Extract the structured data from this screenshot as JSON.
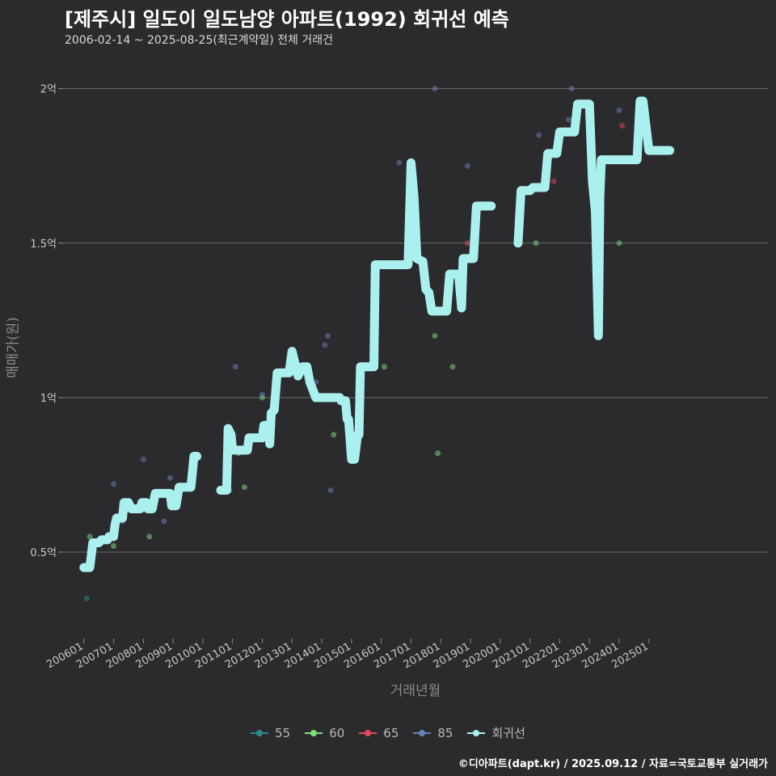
{
  "title": "[제주시] 일도이 일도남양 아파트(1992) 회귀선 예측",
  "subtitle": "2006-02-14 ~ 2025-08-25(최근계약일) 전체 거래건",
  "credit": "©디아파트(dapt.kr) / 2025.09.12 / 자료=국토교통부 실거래가",
  "chart_data": {
    "type": "line",
    "xlabel": "거래년월",
    "ylabel": "매매가(원)",
    "x_ticks": [
      "200601",
      "200701",
      "200801",
      "200901",
      "201001",
      "201101",
      "201201",
      "201301",
      "201401",
      "201501",
      "201601",
      "201701",
      "201801",
      "201901",
      "202001",
      "202101",
      "202201",
      "202301",
      "202401",
      "202501"
    ],
    "y_ticks": [
      {
        "value": 0.5,
        "label": "0.5억"
      },
      {
        "value": 1.0,
        "label": "1억"
      },
      {
        "value": 1.5,
        "label": "1.5억"
      },
      {
        "value": 2.0,
        "label": "2억"
      }
    ],
    "xlim": [
      2005.3,
      2029.0
    ],
    "ylim": [
      0.22,
      2.13
    ],
    "grid": true,
    "legend_position": "bottom",
    "colors": {
      "55": "#2a8a8a",
      "60": "#7ee07e",
      "65": "#e04a5a",
      "85": "#6a82b8",
      "회귀선": "#aaf0ee"
    },
    "legend": [
      "55",
      "60",
      "65",
      "85",
      "회귀선"
    ],
    "scatter": [
      {
        "name": "55",
        "points": [
          [
            2006.1,
            0.35
          ]
        ]
      },
      {
        "name": "60",
        "points": [
          [
            2006.2,
            0.55
          ],
          [
            2007.0,
            0.52
          ],
          [
            2008.2,
            0.55
          ],
          [
            2011.2,
            0.82
          ],
          [
            2011.4,
            0.71
          ],
          [
            2012.0,
            1.0
          ],
          [
            2014.4,
            0.88
          ],
          [
            2016.1,
            1.1
          ],
          [
            2017.8,
            1.2
          ],
          [
            2017.9,
            0.82
          ],
          [
            2018.4,
            1.1
          ],
          [
            2021.2,
            1.5
          ],
          [
            2024.0,
            1.5
          ]
        ]
      },
      {
        "name": "65",
        "points": [
          [
            2018.9,
            1.5
          ],
          [
            2021.8,
            1.7
          ],
          [
            2024.1,
            1.88
          ]
        ]
      },
      {
        "name": "85",
        "points": [
          [
            2007.0,
            0.72
          ],
          [
            2007.3,
            0.6
          ],
          [
            2008.0,
            0.8
          ],
          [
            2008.7,
            0.6
          ],
          [
            2008.9,
            0.74
          ],
          [
            2010.9,
            0.7
          ],
          [
            2011.1,
            1.1
          ],
          [
            2012.0,
            1.01
          ],
          [
            2013.8,
            1.05
          ],
          [
            2014.1,
            1.17
          ],
          [
            2014.2,
            1.2
          ],
          [
            2014.3,
            0.7
          ],
          [
            2016.6,
            1.76
          ],
          [
            2017.8,
            2.0
          ],
          [
            2018.9,
            1.75
          ],
          [
            2021.3,
            1.85
          ],
          [
            2022.3,
            1.9
          ],
          [
            2022.4,
            2.0
          ],
          [
            2024.0,
            1.93
          ]
        ]
      }
    ],
    "series": [
      {
        "name": "회귀선",
        "segments": [
          [
            [
              2006.0,
              0.45
            ],
            [
              2006.2,
              0.45
            ],
            [
              2006.3,
              0.53
            ],
            [
              2006.5,
              0.53
            ],
            [
              2006.6,
              0.54
            ],
            [
              2006.8,
              0.54
            ],
            [
              2006.85,
              0.55
            ],
            [
              2007.0,
              0.55
            ],
            [
              2007.05,
              0.59
            ],
            [
              2007.1,
              0.61
            ],
            [
              2007.3,
              0.61
            ],
            [
              2007.35,
              0.66
            ],
            [
              2007.5,
              0.66
            ],
            [
              2007.6,
              0.64
            ],
            [
              2007.9,
              0.64
            ],
            [
              2007.95,
              0.66
            ],
            [
              2008.1,
              0.66
            ],
            [
              2008.15,
              0.64
            ],
            [
              2008.3,
              0.64
            ],
            [
              2008.4,
              0.69
            ],
            [
              2008.9,
              0.69
            ],
            [
              2008.95,
              0.65
            ],
            [
              2009.1,
              0.65
            ],
            [
              2009.2,
              0.71
            ],
            [
              2009.6,
              0.71
            ],
            [
              2009.65,
              0.76
            ],
            [
              2009.7,
              0.81
            ],
            [
              2009.8,
              0.81
            ]
          ],
          [
            [
              2010.6,
              0.7
            ],
            [
              2010.8,
              0.7
            ],
            [
              2010.85,
              0.9
            ],
            [
              2010.95,
              0.88
            ],
            [
              2011.0,
              0.83
            ],
            [
              2011.5,
              0.83
            ],
            [
              2011.55,
              0.87
            ],
            [
              2012.0,
              0.87
            ],
            [
              2012.05,
              0.91
            ],
            [
              2012.2,
              0.91
            ],
            [
              2012.25,
              0.85
            ],
            [
              2012.3,
              0.95
            ],
            [
              2012.4,
              0.96
            ],
            [
              2012.5,
              1.08
            ],
            [
              2012.9,
              1.08
            ],
            [
              2013.0,
              1.15
            ],
            [
              2013.2,
              1.07
            ],
            [
              2013.35,
              1.1
            ],
            [
              2013.5,
              1.1
            ],
            [
              2013.6,
              1.05
            ],
            [
              2013.8,
              1.0
            ],
            [
              2014.6,
              1.0
            ],
            [
              2014.65,
              0.99
            ],
            [
              2014.8,
              0.99
            ],
            [
              2014.85,
              0.93
            ],
            [
              2014.9,
              0.93
            ],
            [
              2015.0,
              0.8
            ],
            [
              2015.1,
              0.8
            ],
            [
              2015.2,
              0.88
            ],
            [
              2015.25,
              0.88
            ],
            [
              2015.3,
              1.1
            ],
            [
              2015.75,
              1.1
            ],
            [
              2015.8,
              1.43
            ],
            [
              2016.9,
              1.43
            ],
            [
              2017.0,
              1.76
            ],
            [
              2017.1,
              1.65
            ],
            [
              2017.2,
              1.45
            ],
            [
              2017.4,
              1.44
            ],
            [
              2017.5,
              1.35
            ],
            [
              2017.6,
              1.34
            ],
            [
              2017.7,
              1.28
            ],
            [
              2018.2,
              1.28
            ],
            [
              2018.3,
              1.4
            ],
            [
              2018.6,
              1.4
            ],
            [
              2018.7,
              1.29
            ],
            [
              2018.75,
              1.45
            ],
            [
              2019.1,
              1.45
            ],
            [
              2019.2,
              1.62
            ],
            [
              2019.7,
              1.62
            ]
          ],
          [
            [
              2020.6,
              1.5
            ],
            [
              2020.7,
              1.67
            ],
            [
              2021.0,
              1.67
            ],
            [
              2021.1,
              1.68
            ],
            [
              2021.5,
              1.68
            ],
            [
              2021.6,
              1.79
            ],
            [
              2021.9,
              1.79
            ],
            [
              2022.0,
              1.86
            ],
            [
              2022.5,
              1.86
            ],
            [
              2022.6,
              1.95
            ],
            [
              2023.0,
              1.95
            ],
            [
              2023.1,
              1.7
            ],
            [
              2023.2,
              1.6
            ],
            [
              2023.3,
              1.2
            ],
            [
              2023.35,
              1.65
            ],
            [
              2023.4,
              1.77
            ],
            [
              2024.6,
              1.77
            ],
            [
              2024.7,
              1.96
            ],
            [
              2024.8,
              1.96
            ],
            [
              2024.9,
              1.88
            ],
            [
              2025.0,
              1.8
            ],
            [
              2025.7,
              1.8
            ]
          ]
        ]
      }
    ]
  }
}
